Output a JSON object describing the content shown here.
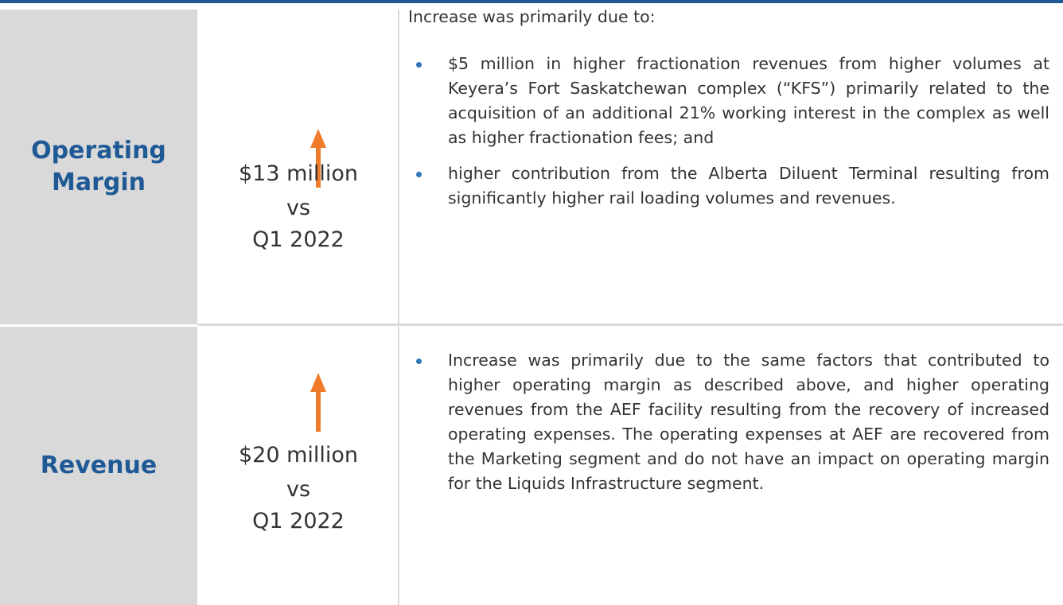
{
  "rows": [
    {
      "label": "Operating Margin",
      "change": "$13 million",
      "comparison": "vs",
      "period": "Q1 2022",
      "intro": "Increase was primarily due to:",
      "bullets": [
        "$5 million in higher fractionation revenues from higher volumes at Keyera’s Fort Saskatchewan complex (“KFS”) primarily related to the acquisition of an additional 21% working interest in the complex as well as higher fractionation fees; and",
        "higher contribution from the Alberta Diluent Terminal resulting from significantly higher rail loading volumes and revenues."
      ]
    },
    {
      "label": "Revenue",
      "change": "$20 million",
      "comparison": "vs",
      "period": "Q1 2022",
      "bullets": [
        "Increase was primarily due to the same factors that contributed to higher operating margin as described above, and higher operating revenues from the AEF facility resulting from the recovery of increased operating expenses. The operating expenses at AEF are recovered from the Marketing segment and do not have an impact on operating margin for the Liquids Infrastructure segment."
      ]
    }
  ]
}
